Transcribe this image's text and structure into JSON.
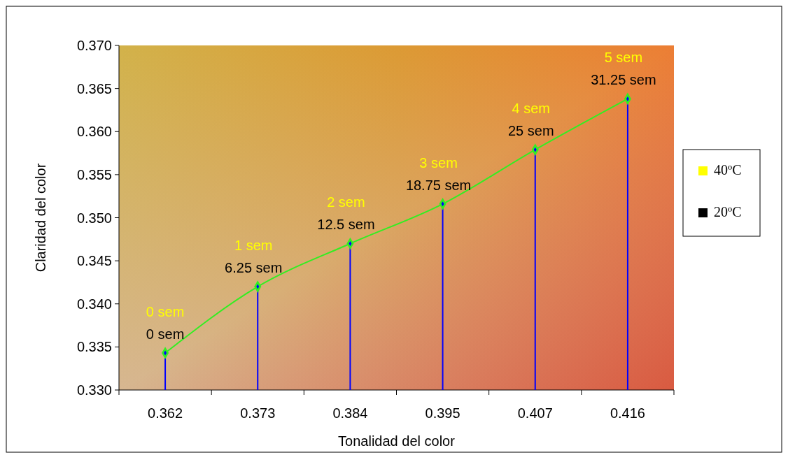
{
  "chart_data": {
    "type": "line",
    "xlabel": "Tonalidad del color",
    "ylabel": "Claridad del color",
    "categories": [
      "0.362",
      "0.373",
      "0.384",
      "0.395",
      "0.407",
      "0.416"
    ],
    "series": [
      {
        "color": "#33ee22",
        "values": [
          0.3343,
          0.342,
          0.347,
          0.3516,
          0.3579,
          0.3638
        ]
      },
      {
        "type": "lollipop",
        "color": "#0000ff",
        "values": [
          0.3343,
          0.342,
          0.347,
          0.3516,
          0.3579,
          0.3638
        ]
      },
      {
        "type": "scatter",
        "name": "40ºC",
        "color": "#ffff00",
        "values": [
          null,
          null,
          null,
          null,
          null,
          null
        ]
      },
      {
        "type": "scatter",
        "name": "20ºC",
        "color": "#000000",
        "values": [
          null,
          null,
          null,
          null,
          null,
          null
        ]
      }
    ],
    "annotations": [
      {
        "text": "0 sem",
        "x": "0.362",
        "y": 0.3343
      },
      {
        "text": "1 sem",
        "x": "0.373",
        "y": 0.342
      },
      {
        "text": "2 sem",
        "x": "0.384",
        "y": 0.347
      },
      {
        "text": "3 sem",
        "x": "0.395",
        "y": 0.3516
      },
      {
        "text": "4 sem",
        "x": "0.407",
        "y": 0.3579
      },
      {
        "text": "5 sem",
        "x": "0.416",
        "y": 0.3638
      },
      {
        "text": "0 sem",
        "x": "0.362",
        "y": 0.3343
      },
      {
        "text": "6.25 sem",
        "x": "0.373",
        "y": 0.342
      },
      {
        "text": "12.5 sem",
        "x": "0.384",
        "y": 0.347
      },
      {
        "text": "18.75 sem",
        "x": "0.395",
        "y": 0.3516
      },
      {
        "text": "25 sem",
        "x": "0.407",
        "y": 0.3579
      },
      {
        "text": "31.25 sem",
        "x": "0.416",
        "y": 0.3638
      }
    ],
    "marker": "diamond",
    "legend": "right",
    "grid": false,
    "ylim": [
      0.33,
      0.37
    ],
    "yticks": [
      {
        "value": 0.33,
        "label": "0.330"
      },
      {
        "value": 0.335,
        "label": "0.335"
      },
      {
        "value": 0.34,
        "label": "0.340"
      },
      {
        "value": 0.345,
        "label": "0.345"
      },
      {
        "value": 0.35,
        "label": "0.350"
      },
      {
        "value": 0.355,
        "label": "0.355"
      },
      {
        "value": 0.36,
        "label": "0.360"
      },
      {
        "value": 0.365,
        "label": "0.365"
      },
      {
        "value": 0.37,
        "label": "0.370"
      }
    ]
  }
}
